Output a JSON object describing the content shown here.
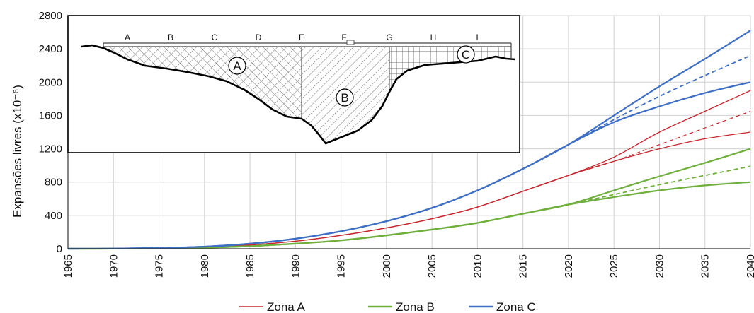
{
  "chart_data": {
    "type": "line",
    "ylabel": "Expansões livres (x10⁻⁶)",
    "xlim": [
      1965,
      2040
    ],
    "ylim": [
      0,
      2800
    ],
    "xticks": [
      "1965",
      "1970",
      "1975",
      "1980",
      "1985",
      "1990",
      "1995",
      "2000",
      "2005",
      "2010",
      "2015",
      "2020",
      "2025",
      "2030",
      "2035",
      "2040"
    ],
    "yticks": [
      "0",
      "400",
      "800",
      "1200",
      "1600",
      "2000",
      "2400",
      "2800"
    ],
    "grid": true,
    "legend_position": "bottom",
    "legend": [
      "Zona A",
      "Zona B",
      "Zona C"
    ],
    "colors": {
      "zona_a": "#C8262E",
      "zona_b": "#6FAF3C",
      "zona_c": "#3E6FC4"
    },
    "x": [
      1965,
      1970,
      1975,
      1980,
      1985,
      1990,
      1995,
      2000,
      2005,
      2010,
      2015,
      2020,
      2025,
      2030,
      2035,
      2040
    ],
    "series": [
      {
        "group": "Zona A",
        "style": "solid",
        "values": [
          0,
          2,
          8,
          20,
          45,
          90,
          160,
          250,
          360,
          500,
          690,
          880,
          1100,
          1400,
          1650,
          1900
        ]
      },
      {
        "group": "Zona A",
        "style": "dashed",
        "values": [
          0,
          2,
          8,
          20,
          45,
          90,
          160,
          250,
          360,
          500,
          690,
          880,
          1050,
          1250,
          1450,
          1650
        ]
      },
      {
        "group": "Zona A",
        "style": "solid",
        "values": [
          0,
          2,
          8,
          20,
          45,
          90,
          160,
          250,
          360,
          500,
          690,
          880,
          1050,
          1200,
          1320,
          1400
        ]
      },
      {
        "group": "Zona B",
        "style": "solid",
        "values": [
          0,
          1,
          4,
          12,
          30,
          60,
          100,
          160,
          230,
          310,
          420,
          530,
          700,
          870,
          1030,
          1200
        ]
      },
      {
        "group": "Zona B",
        "style": "dashed",
        "values": [
          0,
          1,
          4,
          12,
          30,
          60,
          100,
          160,
          230,
          310,
          420,
          530,
          650,
          770,
          880,
          990
        ]
      },
      {
        "group": "Zona B",
        "style": "solid",
        "values": [
          0,
          1,
          4,
          12,
          30,
          60,
          100,
          160,
          230,
          310,
          420,
          530,
          620,
          700,
          760,
          800
        ]
      },
      {
        "group": "Zona C",
        "style": "solid",
        "values": [
          0,
          2,
          10,
          25,
          60,
          120,
          210,
          330,
          490,
          700,
          960,
          1250,
          1600,
          1950,
          2280,
          2620
        ]
      },
      {
        "group": "Zona C",
        "style": "dashed",
        "values": [
          0,
          2,
          10,
          25,
          60,
          120,
          210,
          330,
          490,
          700,
          960,
          1250,
          1550,
          1830,
          2080,
          2320
        ]
      },
      {
        "group": "Zona C",
        "style": "solid",
        "values": [
          0,
          2,
          10,
          25,
          60,
          120,
          210,
          330,
          490,
          700,
          960,
          1250,
          1520,
          1710,
          1870,
          2000
        ]
      }
    ]
  },
  "inset": {
    "section_letters": [
      "A",
      "B",
      "C",
      "D",
      "E",
      "F",
      "G",
      "H",
      "I"
    ],
    "zone_labels": [
      "A",
      "B",
      "C"
    ]
  }
}
